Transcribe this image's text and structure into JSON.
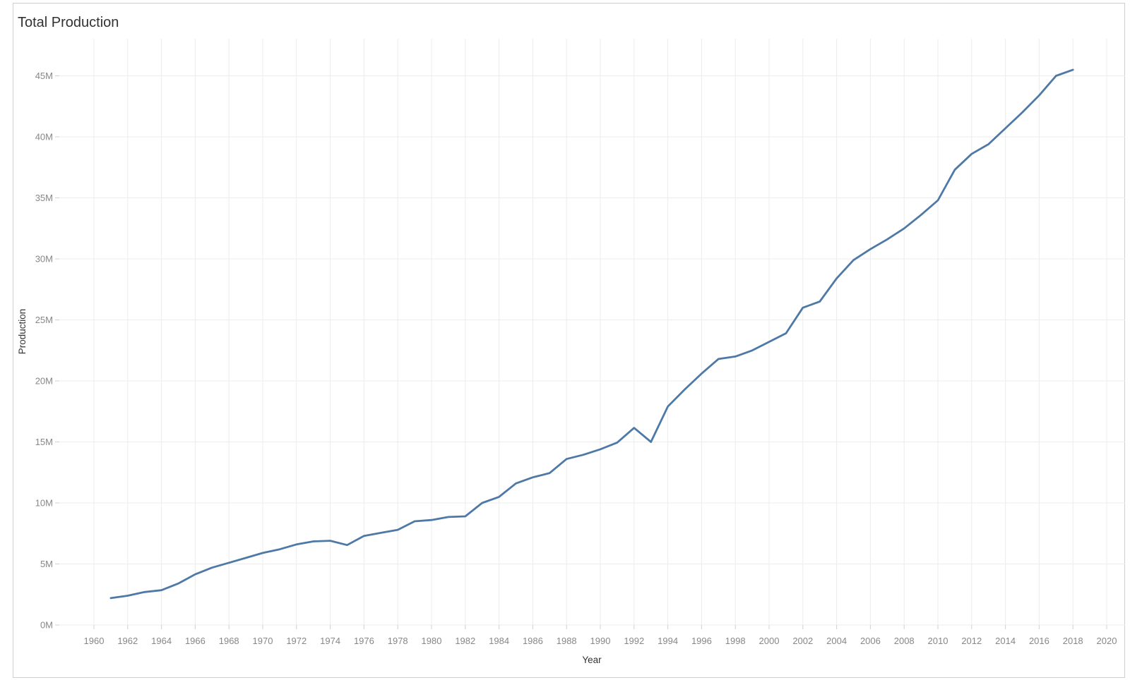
{
  "header": {
    "title": "Total Production"
  },
  "colors": {
    "line": "#4e79a7",
    "gridline": "#ececec",
    "tick": "#d0d0d0",
    "tick_label": "#878787",
    "axis_title": "#333333",
    "title": "#323232",
    "frame_border": "#cfcfcf",
    "background": "#ffffff"
  },
  "chart_data": {
    "type": "line",
    "title": "Total Production",
    "xlabel": "Year",
    "ylabel": "Production",
    "unit": "millions",
    "unit_suffix": "M",
    "grid": true,
    "legend": "none",
    "x_tick_labels": [
      "1960",
      "1962",
      "1964",
      "1966",
      "1968",
      "1970",
      "1972",
      "1974",
      "1976",
      "1978",
      "1980",
      "1982",
      "1984",
      "1986",
      "1988",
      "1990",
      "1992",
      "1994",
      "1996",
      "1998",
      "2000",
      "2002",
      "2004",
      "2006",
      "2008",
      "2010",
      "2012",
      "2014",
      "2016",
      "2018",
      "2020"
    ],
    "y_tick_labels": [
      "0M",
      "5M",
      "10M",
      "15M",
      "20M",
      "25M",
      "30M",
      "35M",
      "40M",
      "45M"
    ],
    "x_axis_range_years": [
      1958,
      2021
    ],
    "y_axis_range_millions": [
      0,
      48
    ],
    "series": [
      {
        "name": "Total Production",
        "x": [
          1961,
          1962,
          1963,
          1964,
          1965,
          1966,
          1967,
          1968,
          1969,
          1970,
          1971,
          1972,
          1973,
          1974,
          1975,
          1976,
          1977,
          1978,
          1979,
          1980,
          1981,
          1982,
          1983,
          1984,
          1985,
          1986,
          1987,
          1988,
          1989,
          1990,
          1991,
          1992,
          1993,
          1994,
          1995,
          1996,
          1997,
          1998,
          1999,
          2000,
          2001,
          2002,
          2003,
          2004,
          2005,
          2006,
          2007,
          2008,
          2009,
          2010,
          2011,
          2012,
          2013,
          2014,
          2015,
          2016,
          2017,
          2018
        ],
        "values_millions": [
          2.2,
          2.4,
          2.7,
          2.85,
          3.4,
          4.15,
          4.7,
          5.1,
          5.5,
          5.9,
          6.2,
          6.6,
          6.85,
          6.9,
          6.55,
          7.3,
          7.55,
          7.8,
          8.5,
          8.6,
          8.85,
          8.9,
          10.0,
          10.5,
          11.6,
          12.1,
          12.45,
          13.6,
          13.95,
          14.4,
          14.95,
          16.15,
          15.0,
          17.9,
          19.3,
          20.6,
          21.8,
          22.0,
          22.5,
          23.2,
          23.9,
          26.0,
          26.5,
          28.4,
          29.9,
          30.8,
          31.6,
          32.5,
          33.6,
          34.8,
          37.3,
          38.6,
          39.4,
          40.7,
          42.0,
          43.4,
          45.0,
          45.5
        ]
      }
    ]
  }
}
